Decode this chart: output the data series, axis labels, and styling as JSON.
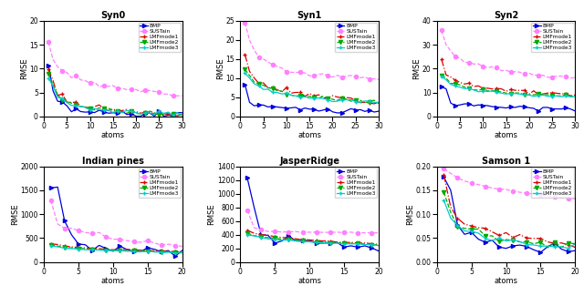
{
  "subplots": [
    {
      "title": "Syn0",
      "xlabel": "atoms",
      "ylabel": "RMSE",
      "xlim": [
        0,
        30
      ],
      "ylim": [
        0,
        20
      ],
      "yticks": [
        0,
        5,
        10,
        15,
        20
      ],
      "xticks": [
        0,
        5,
        10,
        15,
        20,
        25,
        30
      ],
      "xmax_atoms": 30
    },
    {
      "title": "Syn1",
      "xlabel": "atoms",
      "ylabel": "RMSE",
      "xlim": [
        0,
        30
      ],
      "ylim": [
        0,
        25
      ],
      "yticks": [
        0,
        5,
        10,
        15,
        20,
        25
      ],
      "xticks": [
        0,
        5,
        10,
        15,
        20,
        25,
        30
      ],
      "xmax_atoms": 30
    },
    {
      "title": "Syn2",
      "xlabel": "atoms",
      "ylabel": "RMSE",
      "xlim": [
        0,
        30
      ],
      "ylim": [
        0,
        40
      ],
      "yticks": [
        0,
        10,
        20,
        30,
        40
      ],
      "xticks": [
        0,
        5,
        10,
        15,
        20,
        25,
        30
      ],
      "xmax_atoms": 30
    },
    {
      "title": "Indian pines",
      "xlabel": "atoms",
      "ylabel": "RMSE",
      "xlim": [
        0,
        20
      ],
      "ylim": [
        0,
        2000
      ],
      "yticks": [
        0,
        500,
        1000,
        1500,
        2000
      ],
      "xticks": [
        0,
        5,
        10,
        15,
        20
      ],
      "xmax_atoms": 20
    },
    {
      "title": "JasperRidge",
      "xlabel": "atoms",
      "ylabel": "RMSE",
      "xlim": [
        0,
        20
      ],
      "ylim": [
        0,
        1400
      ],
      "yticks": [
        0,
        200,
        400,
        600,
        800,
        1000,
        1200,
        1400
      ],
      "xticks": [
        0,
        5,
        10,
        15,
        20
      ],
      "xmax_atoms": 20
    },
    {
      "title": "Samson 1",
      "xlabel": "atoms",
      "ylabel": "RMSE",
      "xlim": [
        0,
        20
      ],
      "ylim": [
        0,
        0.2
      ],
      "yticks": [
        0.0,
        0.05,
        0.1,
        0.15,
        0.2
      ],
      "xticks": [
        0,
        5,
        10,
        15,
        20
      ],
      "xmax_atoms": 20
    }
  ],
  "colors": {
    "BMP": "#0000dd",
    "SUSTain": "#ff80ff",
    "LMFmode1": "#dd0000",
    "LMFmode2": "#00aa00",
    "LMFmode3": "#00cccc"
  },
  "markers": {
    "BMP": ">",
    "SUSTain": "o",
    "LMFmode1": "+",
    "LMFmode2": "v",
    "LMFmode3": "+"
  },
  "linestyles": {
    "BMP": "-",
    "SUSTain": "--",
    "LMFmode1": "-.",
    "LMFmode2": "--",
    "LMFmode3": "-"
  },
  "legend_labels": [
    "BMP",
    "SUSTain",
    "LMFmode1",
    "LMFmode2",
    "LMFmode3"
  ]
}
